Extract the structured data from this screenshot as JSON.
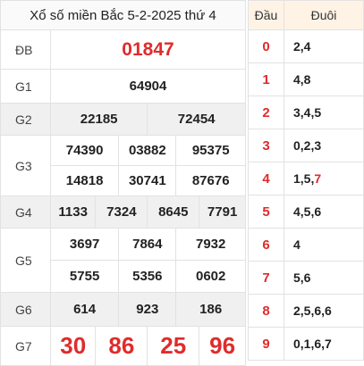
{
  "title": "Xổ số miền Bắc 5-2-2025 thứ 4",
  "rows": {
    "db": {
      "label": "ĐB",
      "values": [
        "01847"
      ]
    },
    "g1": {
      "label": "G1",
      "values": [
        "64904"
      ]
    },
    "g2": {
      "label": "G2",
      "values": [
        "22185",
        "72454"
      ]
    },
    "g3": {
      "label": "G3",
      "values": [
        "74390",
        "03882",
        "95375",
        "14818",
        "30741",
        "87676"
      ]
    },
    "g4": {
      "label": "G4",
      "values": [
        "1133",
        "7324",
        "8645",
        "7791"
      ]
    },
    "g5": {
      "label": "G5",
      "values": [
        "3697",
        "7864",
        "7932",
        "5755",
        "5356",
        "0602"
      ]
    },
    "g6": {
      "label": "G6",
      "values": [
        "614",
        "923",
        "186"
      ]
    },
    "g7": {
      "label": "G7",
      "values": [
        "30",
        "86",
        "25",
        "96"
      ]
    }
  },
  "loto": {
    "head_label": "Đầu",
    "tail_label": "Đuôi",
    "rows": [
      {
        "head": "0",
        "tail": "2,4"
      },
      {
        "head": "1",
        "tail": "4,8"
      },
      {
        "head": "2",
        "tail": "3,4,5"
      },
      {
        "head": "3",
        "tail": "0,2,3"
      },
      {
        "head": "4",
        "tail_prefix": "1,5,",
        "tail_red": "7"
      },
      {
        "head": "5",
        "tail": "4,5,6"
      },
      {
        "head": "6",
        "tail": "4"
      },
      {
        "head": "7",
        "tail": "5,6"
      },
      {
        "head": "8",
        "tail": "2,5,6,6"
      },
      {
        "head": "9",
        "tail": "0,1,6,7"
      }
    ]
  },
  "colors": {
    "accent": "#e02b2b",
    "gray_row": "#f0f0f0",
    "loto_header": "#fff3e6"
  }
}
